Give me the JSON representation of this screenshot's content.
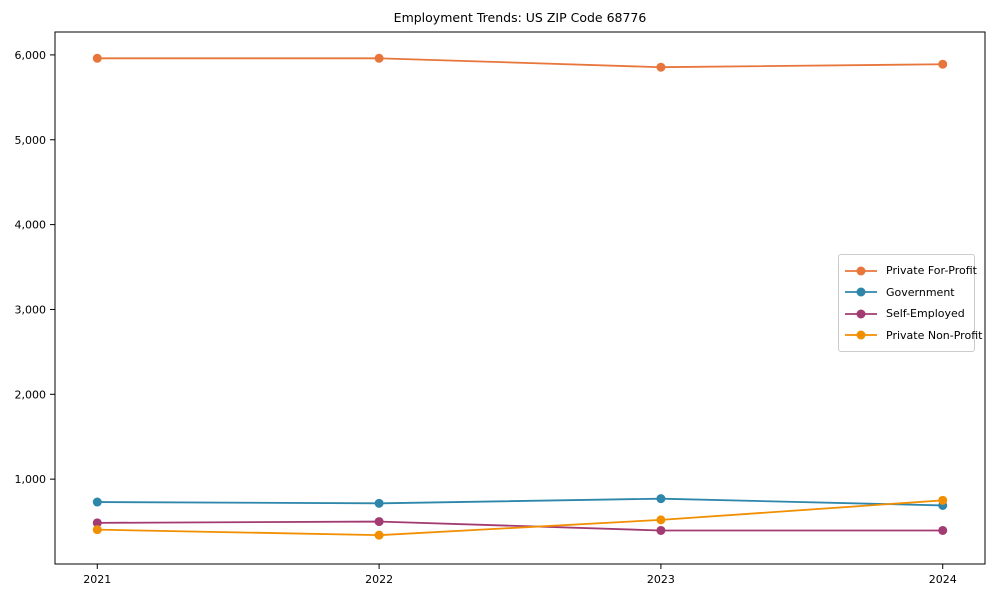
{
  "chart_data": {
    "type": "line",
    "title": "Employment Trends: US ZIP Code 68776",
    "x_categories": [
      "2021",
      "2022",
      "2023",
      "2024"
    ],
    "series": [
      {
        "name": "Private For-Profit",
        "color": "#E8763C",
        "values": [
          5960,
          5960,
          5855,
          5890
        ]
      },
      {
        "name": "Government",
        "color": "#2E86AB",
        "values": [
          730,
          715,
          770,
          690
        ]
      },
      {
        "name": "Self-Employed",
        "color": "#A23B72",
        "values": [
          485,
          500,
          395,
          395
        ]
      },
      {
        "name": "Private Non-Profit",
        "color": "#F18F01",
        "values": [
          405,
          340,
          520,
          750
        ]
      }
    ],
    "xlabel": "",
    "ylabel": "",
    "ylim": [
      0,
      6270
    ],
    "yticks": [
      {
        "value": 1000,
        "label": "1,000"
      },
      {
        "value": 2000,
        "label": "2,000"
      },
      {
        "value": 3000,
        "label": "3,000"
      },
      {
        "value": 4000,
        "label": "4,000"
      },
      {
        "value": 5000,
        "label": "5,000"
      },
      {
        "value": 6000,
        "label": "6,000"
      }
    ],
    "grid": false,
    "legend_position": "center-right",
    "marker": "circle",
    "axis_color": "#000000",
    "legend_border_color": "#cccccc"
  }
}
